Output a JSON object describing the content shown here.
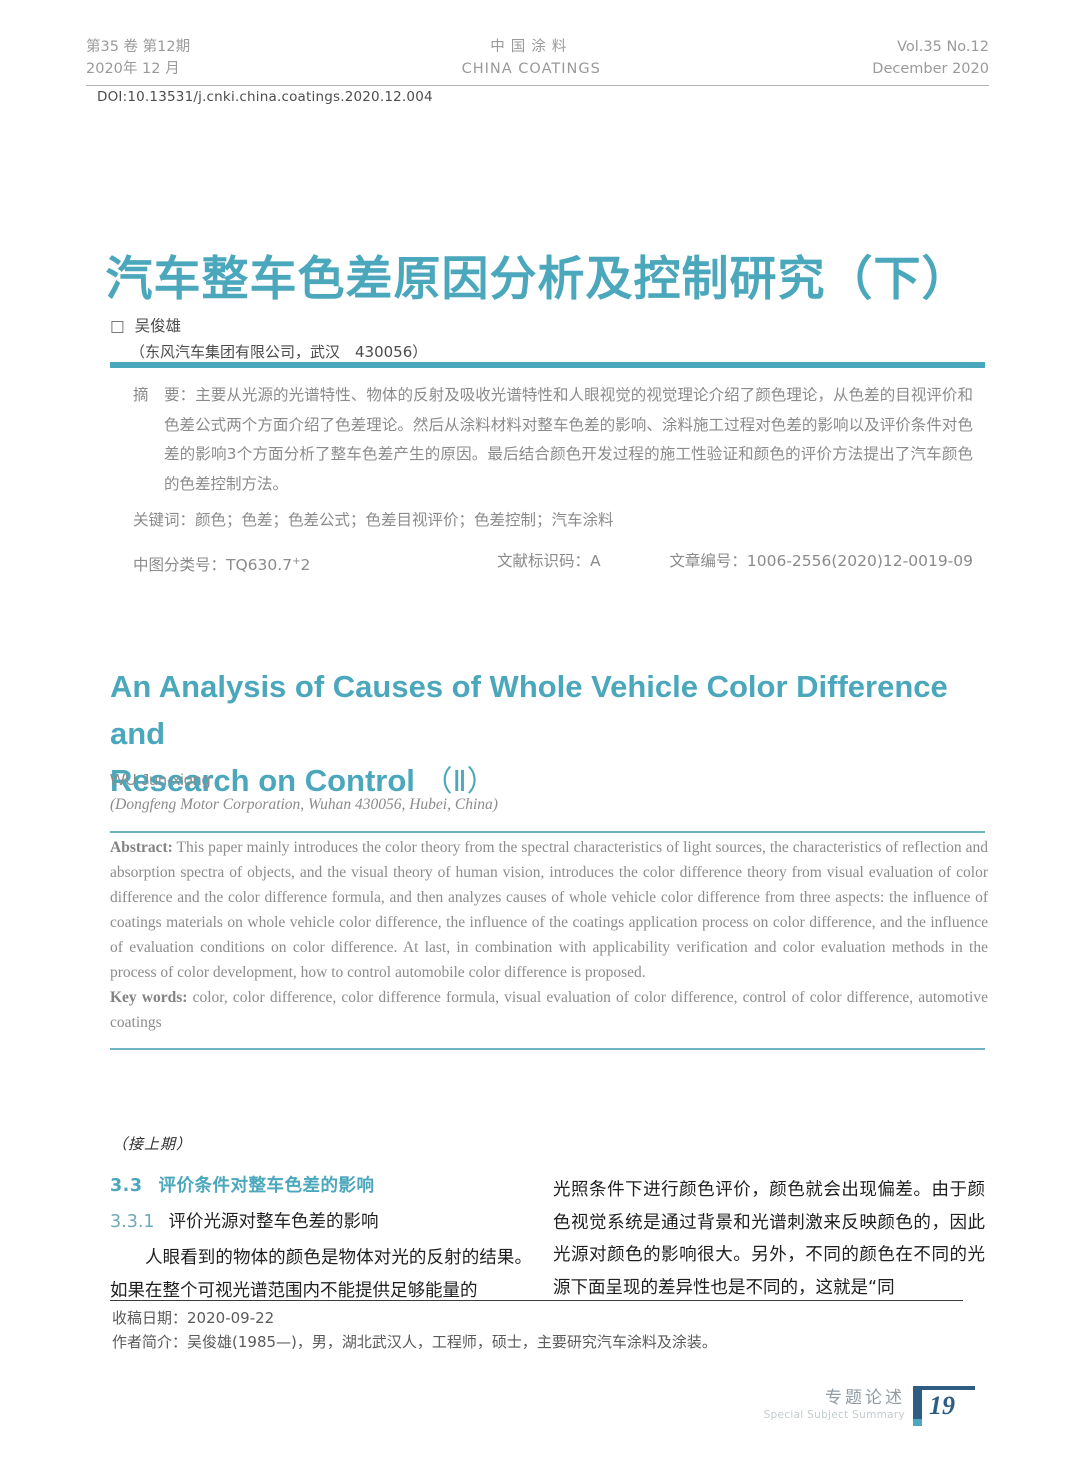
{
  "colors": {
    "accent_teal": "#4ba7bb",
    "navy": "#2e5d84"
  },
  "header": {
    "left_line1": "第35 卷 第12期",
    "left_line2": "2020年 12 月",
    "center_line1": "中国涂料",
    "center_line2": "CHINA COATINGS",
    "right_line1": "Vol.35 No.12",
    "right_line2": "December 2020",
    "doi": "DOI:10.13531/j.cnki.china.coatings.2020.12.004"
  },
  "title_cn": "汽车整车色差原因分析及控制研究（下）",
  "author_cn": {
    "marker": "□",
    "name": "吴俊雄",
    "affiliation": "（东风汽车集团有限公司，武汉　430056）"
  },
  "abstract_cn": {
    "label": "摘　要：",
    "text": "主要从光源的光谱特性、物体的反射及吸收光谱特性和人眼视觉的视觉理论介绍了颜色理论，从色差的目视评价和色差公式两个方面介绍了色差理论。然后从涂料材料对整车色差的影响、涂料施工过程对色差的影响以及评价条件对色差的影响3个方面分析了整车色差产生的原因。最后结合颜色开发过程的施工性验证和颜色的评价方法提出了汽车颜色的色差控制方法。"
  },
  "keywords_cn": {
    "label": "关键词：",
    "text": "颜色；色差；色差公式；色差目视评价；色差控制；汽车涂料"
  },
  "classification": {
    "clc_label": "中图分类号：",
    "clc_code": "TQ630.7",
    "clc_sup": "+",
    "clc_tail": "2",
    "doc_code": "文献标识码：A",
    "article_id": "文章编号：1006-2556(2020)12-0019-09"
  },
  "title_en": {
    "line1": "An Analysis of Causes of Whole Vehicle Color Difference and",
    "line2": "Research on Control",
    "suffix": "（Ⅱ）"
  },
  "author_en": "WU Jun-xiong",
  "affiliation_en": "(Dongfeng Motor Corporation, Wuhan 430056, Hubei, China)",
  "abstract_en": {
    "label": "Abstract:",
    "text": " This paper mainly introduces the color theory from the spectral characteristics of light sources, the characteristics of reflection and absorption spectra of objects, and the visual theory of human vision, introduces the color difference theory from visual evaluation of color difference and the color difference formula, and then analyzes causes of whole vehicle color difference from three aspects: the influence of coatings materials on whole vehicle color difference, the influence of the coatings application process on color difference, and the influence of evaluation conditions on color difference. At last, in combination with applicability verification and color evaluation methods in the process of color development, how to control automobile color difference is proposed."
  },
  "keywords_en": {
    "label": "Key words:",
    "text": " color, color difference, color difference formula, visual evaluation of color difference, control of color difference, automotive coatings"
  },
  "continuation_note": "（接上期）",
  "section_33": {
    "number": "3.3",
    "title": "评价条件对整车色差的影响"
  },
  "section_331": {
    "number": "3.3.1",
    "title": "评价光源对整车色差的影响"
  },
  "body_left": "人眼看到的物体的颜色是物体对光的反射的结果。如果在整个可视光谱范围内不能提供足够能量的",
  "body_right": "光照条件下进行颜色评价，颜色就会出现偏差。由于颜色视觉系统是通过背景和光谱刺激来反映颜色的，因此光源对颜色的影响很大。另外，不同的颜色在不同的光源下面呈现的差异性也是不同的，这就是“同",
  "footnote": {
    "received_label": "收稿日期：",
    "received_date": "2020-09-22",
    "bio_label": "作者简介：",
    "bio_text": "吴俊雄(1985—)，男，湖北武汉人，工程师，硕士，主要研究汽车涂料及涂装。"
  },
  "page_footer": {
    "column_cn": "专题论述",
    "column_en": "Special Subject Summary",
    "page_number": "19"
  }
}
